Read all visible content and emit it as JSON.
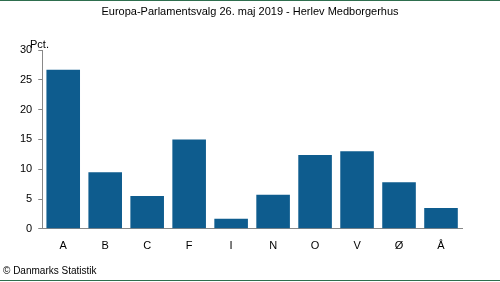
{
  "chart_data": {
    "type": "bar",
    "title": "Europa-Parlamentsvalg 26. maj 2019 - Herlev Medborgerhus",
    "ylabel": "Pct.",
    "annotations": [
      "© Danmarks Statistik"
    ],
    "categories": [
      "A",
      "B",
      "C",
      "F",
      "I",
      "N",
      "O",
      "V",
      "Ø",
      "Å"
    ],
    "values": [
      26.7,
      9.5,
      5.5,
      15.0,
      1.7,
      5.7,
      12.4,
      13.0,
      7.8,
      3.5
    ],
    "color": "#0e5c8e",
    "ylim": [
      0,
      30
    ],
    "yticks": [
      0,
      5,
      10,
      15,
      20,
      25,
      30
    ],
    "grid": false
  }
}
